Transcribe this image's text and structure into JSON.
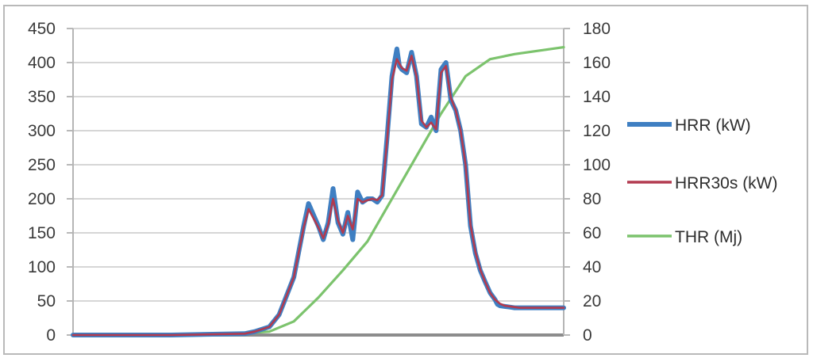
{
  "chart_data": {
    "type": "line",
    "title": "",
    "xlabel": "",
    "ylabel": "",
    "legend_position": "right",
    "grid": true,
    "axes": {
      "left": {
        "ylim": [
          0,
          450
        ],
        "ticks": [
          "0",
          "50",
          "100",
          "150",
          "200",
          "250",
          "300",
          "350",
          "400",
          "450"
        ]
      },
      "right": {
        "ylim": [
          0,
          180
        ],
        "ticks": [
          "0",
          "20",
          "40",
          "60",
          "80",
          "100",
          "120",
          "140",
          "160",
          "180"
        ]
      },
      "x": {
        "xlim": [
          0,
          100
        ],
        "tick_labels_visible": false
      }
    },
    "series": [
      {
        "name": "HRR (kW)",
        "axis": "left",
        "color": "#3f7fc2",
        "x": [
          0,
          20,
          35,
          37,
          40,
          42,
          45,
          47,
          48,
          50,
          51,
          52,
          53,
          54,
          55,
          56,
          57,
          58,
          59,
          60,
          61,
          62,
          63,
          64,
          65,
          66,
          66.5,
          67,
          68,
          69,
          70,
          71,
          72,
          73,
          74,
          75,
          76,
          77,
          78,
          79,
          80,
          81,
          82,
          83,
          84,
          85,
          86,
          86.5,
          87,
          88,
          89,
          90,
          91,
          92,
          93,
          94,
          95,
          96,
          97,
          98,
          99,
          100
        ],
        "values": [
          0,
          0,
          2,
          5,
          12,
          30,
          85,
          160,
          193,
          160,
          140,
          165,
          215,
          165,
          148,
          180,
          140,
          210,
          195,
          200,
          200,
          195,
          205,
          290,
          380,
          420,
          395,
          390,
          385,
          415,
          380,
          310,
          305,
          320,
          300,
          390,
          400,
          345,
          330,
          300,
          250,
          160,
          120,
          95,
          78,
          62,
          52,
          45,
          43,
          42,
          41,
          40,
          40,
          40,
          40,
          40,
          40,
          40,
          40,
          40,
          40,
          40
        ]
      },
      {
        "name": "HRR30s (kW)",
        "axis": "left",
        "color": "#b23a4f",
        "x": [
          0,
          20,
          35,
          37,
          40,
          42,
          45,
          47,
          48,
          50,
          51,
          52,
          53,
          54,
          55,
          56,
          57,
          58,
          59,
          60,
          61,
          62,
          63,
          64,
          65,
          66,
          67,
          68,
          69,
          70,
          71,
          72,
          73,
          74,
          75,
          76,
          77,
          78,
          79,
          80,
          81,
          82,
          83,
          84,
          85,
          86,
          87,
          88,
          89,
          90,
          91,
          92,
          93,
          94,
          95,
          96,
          97,
          98,
          99,
          100
        ],
        "values": [
          0,
          0,
          2,
          5,
          12,
          30,
          85,
          158,
          185,
          158,
          142,
          162,
          200,
          168,
          150,
          175,
          155,
          200,
          195,
          198,
          200,
          198,
          205,
          285,
          375,
          405,
          392,
          388,
          410,
          380,
          315,
          305,
          312,
          302,
          385,
          395,
          348,
          330,
          300,
          250,
          162,
          122,
          96,
          78,
          62,
          52,
          46,
          43,
          42,
          41,
          40,
          40,
          40,
          40,
          40,
          40,
          40,
          40,
          40,
          40
        ]
      },
      {
        "name": "THR (Mj)",
        "axis": "right",
        "color": "#7cc36d",
        "x": [
          0,
          20,
          30,
          40,
          45,
          50,
          55,
          60,
          65,
          70,
          75,
          80,
          85,
          90,
          95,
          100
        ],
        "values": [
          0,
          0,
          0.2,
          2,
          8,
          22,
          38,
          55,
          80,
          105,
          130,
          152,
          162,
          165,
          167,
          169
        ]
      }
    ]
  }
}
